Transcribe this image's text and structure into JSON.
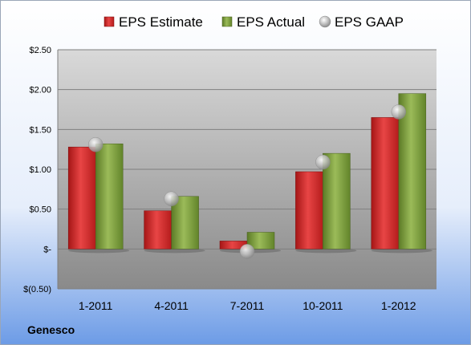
{
  "company": "Genesco",
  "colors": {
    "estimate": "#d42a2a",
    "actual": "#7a9a3a",
    "gaap": "#a8a8a8"
  },
  "chart_data": {
    "type": "bar",
    "categories": [
      "1-2011",
      "4-2011",
      "7-2011",
      "10-2011",
      "1-2012"
    ],
    "series": [
      {
        "name": "EPS Estimate",
        "type": "bar",
        "values": [
          1.28,
          0.48,
          0.1,
          0.97,
          1.65
        ]
      },
      {
        "name": "EPS Actual",
        "type": "bar",
        "values": [
          1.32,
          0.66,
          0.21,
          1.2,
          1.95
        ]
      },
      {
        "name": "EPS GAAP",
        "type": "scatter",
        "values": [
          1.31,
          0.63,
          -0.03,
          1.09,
          1.72
        ]
      }
    ],
    "ylim": [
      -0.5,
      2.5
    ],
    "yticks": [
      -0.5,
      0,
      0.5,
      1.0,
      1.5,
      2.0,
      2.5
    ],
    "ytick_labels": [
      "$(0.50)",
      "$-",
      "$0.50",
      "$1.00",
      "$1.50",
      "$2.00",
      "$2.50"
    ],
    "grid": true,
    "legend_position": "top"
  }
}
